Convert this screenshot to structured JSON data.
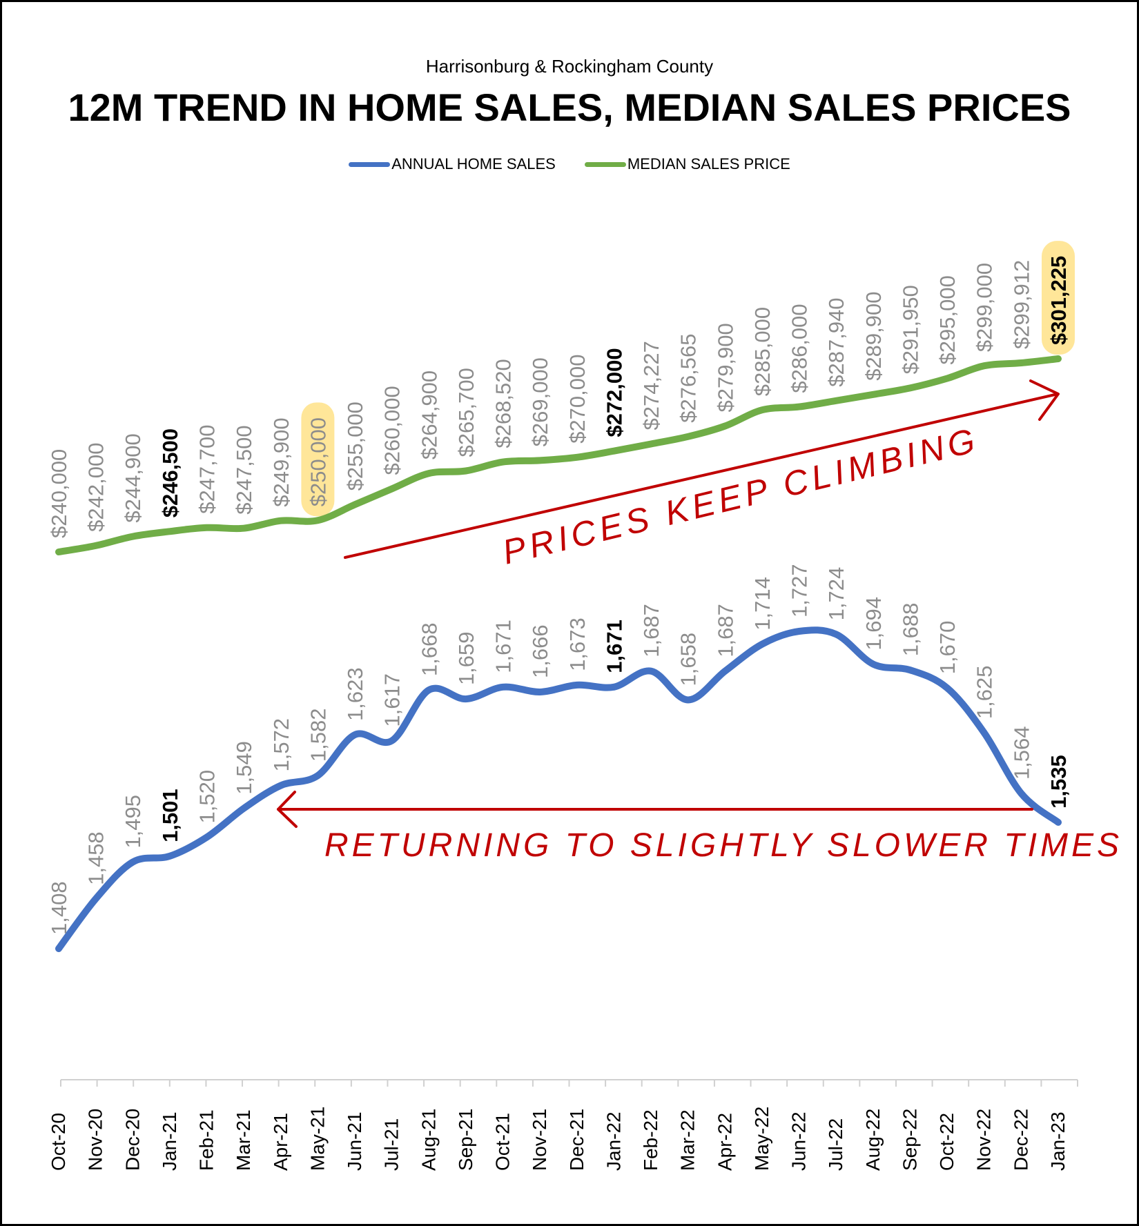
{
  "header": {
    "subtitle": "Harrisonburg & Rockingham County",
    "title": "12M TREND IN HOME SALES, MEDIAN SALES PRICES"
  },
  "legend": {
    "sales_label": "ANNUAL HOME SALES",
    "price_label": "MEDIAN SALES PRICE"
  },
  "colors": {
    "sales": "#4472C4",
    "price": "#70AD47",
    "annotation": "#C00000",
    "label_gray": "#8C8C8C",
    "highlight": "#FFE699"
  },
  "annotations": {
    "price_note": "PRICES KEEP CLIMBING",
    "sales_note": "RETURNING TO SLIGHTLY SLOWER TIMES"
  },
  "chart_data": {
    "type": "line",
    "categories": [
      "Oct-20",
      "Nov-20",
      "Dec-20",
      "Jan-21",
      "Feb-21",
      "Mar-21",
      "Apr-21",
      "May-21",
      "Jun-21",
      "Jul-21",
      "Aug-21",
      "Sep-21",
      "Oct-21",
      "Nov-21",
      "Dec-21",
      "Jan-22",
      "Feb-22",
      "Mar-22",
      "Apr-22",
      "May-22",
      "Jun-22",
      "Jul-22",
      "Aug-22",
      "Sep-22",
      "Oct-22",
      "Nov-22",
      "Dec-22",
      "Jan-23"
    ],
    "series": [
      {
        "name": "ANNUAL HOME SALES",
        "values": [
          1408,
          1458,
          1495,
          1501,
          1520,
          1549,
          1572,
          1582,
          1623,
          1617,
          1668,
          1659,
          1671,
          1666,
          1673,
          1671,
          1687,
          1658,
          1687,
          1714,
          1727,
          1724,
          1694,
          1688,
          1670,
          1625,
          1564,
          1535
        ],
        "labels": [
          "1,408",
          "1,458",
          "1,495",
          "1,501",
          "1,520",
          "1,549",
          "1,572",
          "1,582",
          "1,623",
          "1,617",
          "1,668",
          "1,659",
          "1,671",
          "1,666",
          "1,673",
          "1,671",
          "1,687",
          "1,658",
          "1,687",
          "1,714",
          "1,727",
          "1,724",
          "1,694",
          "1,688",
          "1,670",
          "1,625",
          "1,564",
          "1,535"
        ],
        "bold_indices": [
          3,
          15,
          27
        ],
        "highlight_indices": []
      },
      {
        "name": "MEDIAN SALES PRICE",
        "values": [
          240000,
          242000,
          244900,
          246500,
          247700,
          247500,
          249900,
          250000,
          255000,
          260000,
          264900,
          265700,
          268520,
          269000,
          270000,
          272000,
          274227,
          276565,
          279900,
          285000,
          286000,
          287940,
          289900,
          291950,
          295000,
          299000,
          299912,
          301225
        ],
        "labels": [
          "$240,000",
          "$242,000",
          "$244,900",
          "$246,500",
          "$247,700",
          "$247,500",
          "$249,900",
          "$250,000",
          "$255,000",
          "$260,000",
          "$264,900",
          "$265,700",
          "$268,520",
          "$269,000",
          "$270,000",
          "$272,000",
          "$274,227",
          "$276,565",
          "$279,900",
          "$285,000",
          "$286,000",
          "$287,940",
          "$289,900",
          "$291,950",
          "$295,000",
          "$299,000",
          "$299,912",
          "$301,225"
        ],
        "bold_indices": [
          3,
          15,
          27
        ],
        "highlight_indices": [
          7,
          27
        ]
      }
    ],
    "grid": false,
    "legend_position": "top"
  }
}
